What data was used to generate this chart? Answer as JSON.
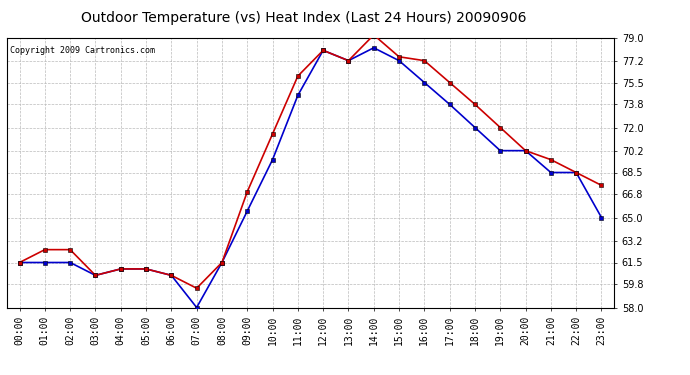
{
  "title": "Outdoor Temperature (vs) Heat Index (Last 24 Hours) 20090906",
  "copyright": "Copyright 2009 Cartronics.com",
  "hours": [
    "00:00",
    "01:00",
    "02:00",
    "03:00",
    "04:00",
    "05:00",
    "06:00",
    "07:00",
    "08:00",
    "09:00",
    "10:00",
    "11:00",
    "12:00",
    "13:00",
    "14:00",
    "15:00",
    "16:00",
    "17:00",
    "18:00",
    "19:00",
    "20:00",
    "21:00",
    "22:00",
    "23:00"
  ],
  "temp": [
    61.5,
    61.5,
    61.5,
    60.5,
    61.0,
    61.0,
    60.5,
    58.0,
    61.5,
    65.5,
    69.5,
    74.5,
    78.0,
    77.2,
    78.2,
    77.2,
    75.5,
    73.8,
    72.0,
    70.2,
    70.2,
    68.5,
    68.5,
    65.0
  ],
  "heat_index": [
    61.5,
    62.5,
    62.5,
    60.5,
    61.0,
    61.0,
    60.5,
    59.5,
    61.5,
    67.0,
    71.5,
    76.0,
    78.0,
    77.2,
    79.2,
    77.5,
    77.2,
    75.5,
    73.8,
    72.0,
    70.2,
    69.5,
    68.5,
    67.5
  ],
  "temp_color": "#0000cc",
  "heat_index_color": "#cc0000",
  "background_color": "#ffffff",
  "grid_color": "#bbbbbb",
  "ylim": [
    58.0,
    79.0
  ],
  "yticks": [
    58.0,
    59.8,
    61.5,
    63.2,
    65.0,
    66.8,
    68.5,
    70.2,
    72.0,
    73.8,
    75.5,
    77.2,
    79.0
  ],
  "title_fontsize": 10,
  "tick_fontsize": 7,
  "marker": "s",
  "marker_size": 3,
  "line_width": 1.2
}
